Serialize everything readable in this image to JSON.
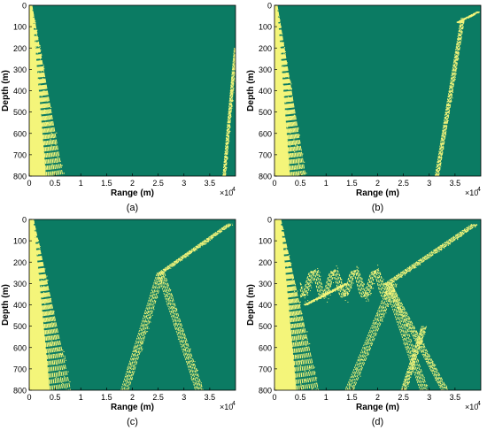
{
  "colors": {
    "background": "#0b7b63",
    "foreground": "#f4f57a",
    "axis": "#000000"
  },
  "panel_labels": [
    "(a)",
    "(b)",
    "(c)",
    "(d)"
  ],
  "chart_data": [
    {
      "type": "heatmap",
      "panel_label": "(a)",
      "xlabel": "Range (m)",
      "ylabel": "Depth (m)",
      "x_multiplier": "×10",
      "x_exponent": "4",
      "xlim": [
        0,
        40000
      ],
      "ylim": [
        0,
        800
      ],
      "y_reversed": true,
      "xticks": [
        0,
        0.5,
        1,
        1.5,
        2,
        2.5,
        3,
        3.5
      ],
      "yticks": [
        0,
        100,
        200,
        300,
        400,
        500,
        600,
        700,
        800
      ],
      "features": [
        {
          "kind": "fan",
          "x_top": [
            0,
            500
          ],
          "x_bottom": [
            0,
            6500
          ],
          "density": 0.9
        },
        {
          "kind": "ray",
          "from": [
            37800,
            800
          ],
          "to": [
            40000,
            200
          ],
          "width": 500
        }
      ]
    },
    {
      "type": "heatmap",
      "panel_label": "(b)",
      "xlabel": "Range (m)",
      "ylabel": "Depth (m)",
      "x_multiplier": "×10",
      "x_exponent": "4",
      "xlim": [
        0,
        40000
      ],
      "ylim": [
        0,
        800
      ],
      "y_reversed": true,
      "xticks": [
        0,
        0.5,
        1,
        1.5,
        2,
        2.5,
        3,
        3.5
      ],
      "yticks": [
        0,
        100,
        200,
        300,
        400,
        500,
        600,
        700,
        800
      ],
      "features": [
        {
          "kind": "fan",
          "x_top": [
            0,
            500
          ],
          "x_bottom": [
            0,
            6000
          ],
          "density": 0.9
        },
        {
          "kind": "ray",
          "from": [
            31500,
            800
          ],
          "to": [
            36500,
            60
          ],
          "width": 700
        },
        {
          "kind": "ray",
          "from": [
            35500,
            80
          ],
          "to": [
            39500,
            30
          ],
          "width": 400
        }
      ]
    },
    {
      "type": "heatmap",
      "panel_label": "(c)",
      "xlabel": "Range (m)",
      "ylabel": "Depth (m)",
      "x_multiplier": "×10",
      "x_exponent": "4",
      "xlim": [
        0,
        40000
      ],
      "ylim": [
        0,
        800
      ],
      "y_reversed": true,
      "xticks": [
        0,
        0.5,
        1,
        1.5,
        2,
        2.5,
        3,
        3.5
      ],
      "yticks": [
        0,
        100,
        200,
        300,
        400,
        500,
        600,
        700,
        800
      ],
      "features": [
        {
          "kind": "fan",
          "x_top": [
            0,
            800
          ],
          "x_bottom": [
            0,
            8000
          ],
          "density": 0.95
        },
        {
          "kind": "ray",
          "from": [
            18500,
            800
          ],
          "to": [
            25500,
            250
          ],
          "width": 1400
        },
        {
          "kind": "ray",
          "from": [
            25500,
            250
          ],
          "to": [
            33000,
            800
          ],
          "width": 1400
        },
        {
          "kind": "ray",
          "from": [
            25500,
            250
          ],
          "to": [
            39000,
            20
          ],
          "width": 900
        }
      ]
    },
    {
      "type": "heatmap",
      "panel_label": "(d)",
      "xlabel": "Range (m)",
      "ylabel": "Depth (m)",
      "x_multiplier": "×10",
      "x_exponent": "4",
      "xlim": [
        0,
        40000
      ],
      "ylim": [
        0,
        800
      ],
      "y_reversed": true,
      "xticks": [
        0,
        0.5,
        1,
        1.5,
        2,
        2.5,
        3,
        3.5
      ],
      "yticks": [
        0,
        100,
        200,
        300,
        400,
        500,
        600,
        700,
        800
      ],
      "features": [
        {
          "kind": "fan",
          "x_top": [
            0,
            1200
          ],
          "x_bottom": [
            0,
            8500
          ],
          "density": 1.0
        },
        {
          "kind": "wave",
          "x_range": [
            5000,
            22000
          ],
          "depth_center": 300,
          "amplitude": 60,
          "wavelength": 4000,
          "width": 700
        },
        {
          "kind": "ray",
          "from": [
            14500,
            800
          ],
          "to": [
            23000,
            300
          ],
          "width": 1500
        },
        {
          "kind": "ray",
          "from": [
            22000,
            300
          ],
          "to": [
            29000,
            800
          ],
          "width": 1500
        },
        {
          "kind": "ray",
          "from": [
            22000,
            300
          ],
          "to": [
            33000,
            800
          ],
          "width": 1200
        },
        {
          "kind": "ray",
          "from": [
            22000,
            300
          ],
          "to": [
            39000,
            20
          ],
          "width": 1200
        },
        {
          "kind": "ray",
          "from": [
            25000,
            800
          ],
          "to": [
            29000,
            500
          ],
          "width": 900
        },
        {
          "kind": "ray",
          "from": [
            6000,
            400
          ],
          "to": [
            14000,
            300
          ],
          "width": 700
        }
      ]
    }
  ]
}
